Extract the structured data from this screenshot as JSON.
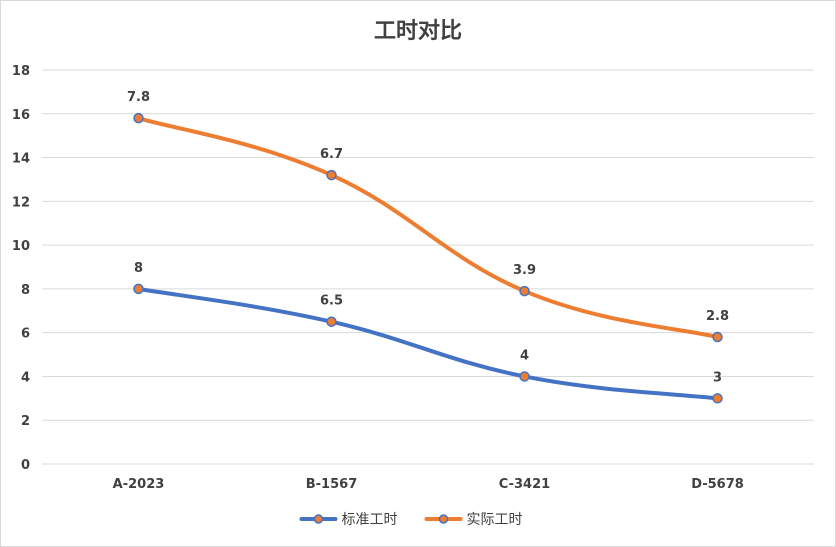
{
  "chart_data": {
    "type": "line",
    "title": "工时对比",
    "xlabel": "",
    "ylabel": "",
    "categories": [
      "A-2023",
      "B-1567",
      "C-3421",
      "D-5678"
    ],
    "ylim": [
      0,
      18
    ],
    "yticks": [
      0,
      2,
      4,
      6,
      8,
      10,
      12,
      14,
      16,
      18
    ],
    "grid": true,
    "legend_position": "bottom",
    "smooth": true,
    "stacked": true,
    "series": [
      {
        "name": "标准工时",
        "values": [
          8,
          6.5,
          4,
          3
        ],
        "labels": [
          "8",
          "6.5",
          "4",
          "3"
        ],
        "color": "#4472c4",
        "marker_fill": "#ed7d31"
      },
      {
        "name": "实际工时",
        "values": [
          7.8,
          6.7,
          3.9,
          2.8
        ],
        "labels": [
          "7.8",
          "6.7",
          "3.9",
          "2.8"
        ],
        "color": "#ed7d31",
        "marker_fill": "#ed7d31"
      }
    ]
  }
}
